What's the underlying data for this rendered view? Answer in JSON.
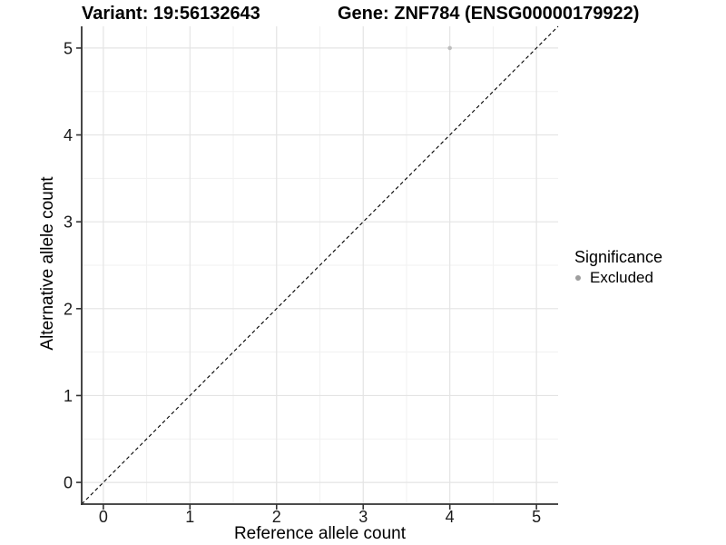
{
  "chart_data": {
    "type": "scatter",
    "title_left": "Variant: 19:56132643",
    "title_right": "Gene: ZNF784 (ENSG00000179922)",
    "xlabel": "Reference allele count",
    "ylabel": "Alternative allele count",
    "xlim": [
      -0.25,
      5.25
    ],
    "ylim": [
      -0.25,
      5.25
    ],
    "xticks": [
      0,
      1,
      2,
      3,
      4,
      5
    ],
    "yticks": [
      0,
      1,
      2,
      3,
      4,
      5
    ],
    "x_minor": [
      0.5,
      1.5,
      2.5,
      3.5,
      4.5
    ],
    "y_minor": [
      0.5,
      1.5,
      2.5,
      3.5,
      4.5
    ],
    "grid": true,
    "identity_line": {
      "style": "dashed",
      "color": "#000000",
      "slope": 1,
      "intercept": 0
    },
    "series": [
      {
        "name": "Excluded",
        "color": "#bdbdbd",
        "points": [
          {
            "x": 4,
            "y": 5
          }
        ]
      }
    ],
    "legend": {
      "position": "right",
      "title": "Significance",
      "items": [
        {
          "label": "Excluded",
          "color": "#9e9e9e"
        }
      ]
    },
    "colors": {
      "background": "#ffffff",
      "grid_major": "#e4e4e4",
      "grid_minor": "#f1f1f1",
      "axis_line": "#333333",
      "tick_text": "#1a1a1a"
    }
  }
}
